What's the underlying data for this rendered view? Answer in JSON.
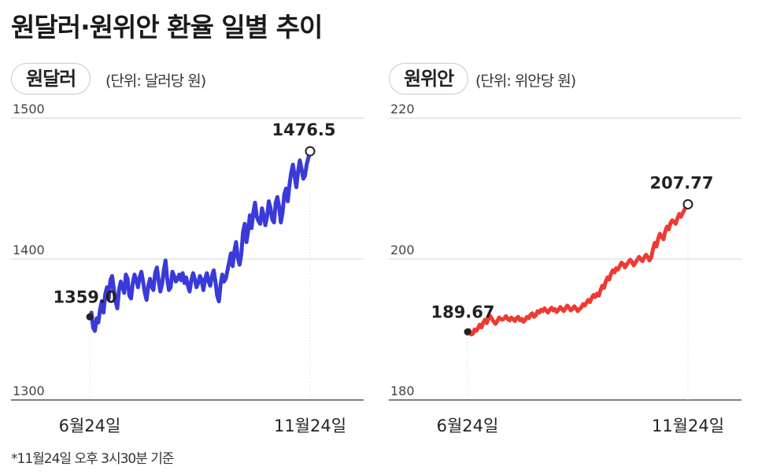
{
  "title": "원달러·원위안 환율 일별 추이",
  "footnote": "*11월24일 오후 3시30분 기준",
  "chart_data": [
    {
      "type": "line",
      "badge": "원달러",
      "unit": "(단위: 달러당 원)",
      "color": "#3a3ad8",
      "ylim": [
        1300,
        1500
      ],
      "yticks": [
        "1500",
        "1400",
        "1300"
      ],
      "x_labels": [
        "6월24일",
        "11월24일"
      ],
      "start_label": "1359.0",
      "end_label": "1476.5",
      "series": [
        {
          "values": [
            1359.0,
            1362,
            1351,
            1349,
            1358,
            1355,
            1364,
            1370,
            1362,
            1375,
            1380,
            1372,
            1385,
            1388,
            1379,
            1370,
            1365,
            1378,
            1384,
            1380,
            1376,
            1389,
            1386,
            1374,
            1372,
            1383,
            1389,
            1385,
            1380,
            1387,
            1391,
            1384,
            1376,
            1371,
            1381,
            1386,
            1380,
            1378,
            1390,
            1394,
            1385,
            1377,
            1382,
            1392,
            1399,
            1386,
            1378,
            1380,
            1391,
            1388,
            1384,
            1386,
            1389,
            1385,
            1390,
            1383,
            1387,
            1381,
            1377,
            1385,
            1390,
            1386,
            1380,
            1383,
            1388,
            1385,
            1378,
            1386,
            1390,
            1384,
            1381,
            1388,
            1392,
            1384,
            1374,
            1370,
            1382,
            1389,
            1384,
            1386,
            1392,
            1398,
            1404,
            1395,
            1406,
            1412,
            1401,
            1396,
            1403,
            1419,
            1425,
            1412,
            1420,
            1431,
            1422,
            1433,
            1440,
            1430,
            1427,
            1425,
            1436,
            1431,
            1424,
            1430,
            1441,
            1436,
            1428,
            1426,
            1440,
            1444,
            1437,
            1426,
            1433,
            1446,
            1450,
            1441,
            1453,
            1461,
            1467,
            1459,
            1451,
            1462,
            1470,
            1464,
            1457,
            1459,
            1467,
            1472,
            1476.5
          ]
        }
      ]
    },
    {
      "type": "line",
      "badge": "원위안",
      "unit": "(단위: 위안당 원)",
      "color": "#ee3a33",
      "ylim": [
        180,
        220
      ],
      "yticks": [
        "220",
        "200",
        "180"
      ],
      "x_labels": [
        "6월24일",
        "11월24일"
      ],
      "start_label": "189.67",
      "end_label": "207.77",
      "series": [
        {
          "values": [
            189.67,
            189.9,
            189.3,
            189.4,
            190.0,
            189.8,
            190.2,
            190.7,
            190.3,
            191.0,
            191.4,
            190.9,
            191.6,
            191.9,
            191.5,
            191.1,
            190.8,
            191.2,
            191.7,
            191.5,
            191.4,
            191.6,
            191.9,
            191.5,
            191.3,
            191.7,
            191.5,
            191.2,
            191.6,
            191.8,
            191.3,
            191.5,
            191.1,
            191.4,
            191.8,
            191.6,
            192.1,
            192.3,
            191.8,
            192.0,
            192.6,
            192.4,
            192.8,
            192.6,
            193.0,
            192.7,
            192.4,
            192.8,
            193.1,
            192.7,
            192.9,
            192.5,
            192.8,
            193.2,
            192.9,
            192.6,
            193.0,
            193.4,
            193.1,
            192.7,
            192.9,
            193.3,
            193.0,
            192.6,
            192.9,
            193.1,
            193.6,
            193.4,
            193.8,
            194.2,
            193.9,
            194.5,
            194.9,
            194.6,
            195.1,
            194.8,
            195.6,
            196.2,
            195.9,
            196.8,
            197.4,
            197.1,
            197.9,
            198.4,
            198.1,
            198.7,
            198.5,
            199.0,
            199.5,
            199.3,
            198.8,
            199.2,
            199.6,
            199.9,
            199.6,
            199.1,
            199.5,
            199.9,
            200.3,
            200.0,
            199.7,
            200.2,
            200.6,
            200.3,
            199.8,
            200.2,
            201.4,
            202.3,
            201.8,
            202.9,
            203.6,
            203.2,
            202.8,
            203.9,
            204.6,
            204.2,
            205.1,
            205.5,
            205.3,
            205.0,
            205.8,
            206.4,
            206.0,
            206.5,
            207.0,
            207.4,
            207.77
          ]
        }
      ]
    }
  ]
}
